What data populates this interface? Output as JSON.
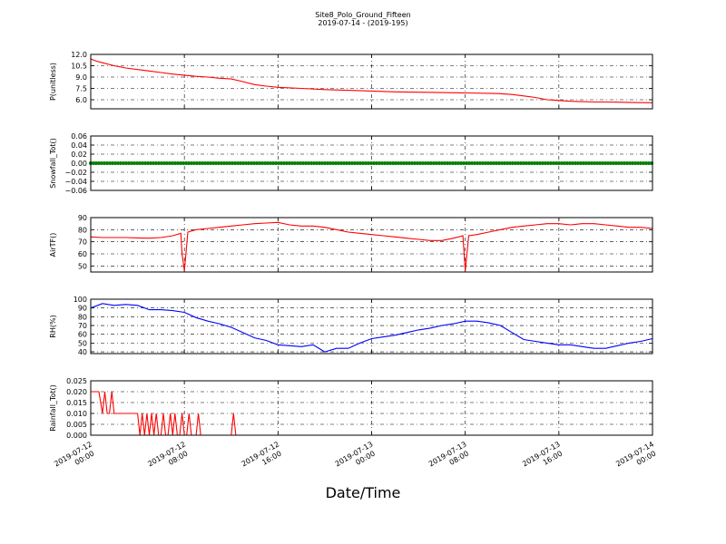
{
  "figure": {
    "title": "Site8_Polo_Ground_Fifteen",
    "subtitle": "2019-07-14 - (2019-195)",
    "xlabel": "Date/Time",
    "x_ticks": [
      [
        "2019-07-12",
        "00:00"
      ],
      [
        "2019-07-12",
        "08:00"
      ],
      [
        "2019-07-12",
        "16:00"
      ],
      [
        "2019-07-13",
        "00:00"
      ],
      [
        "2019-07-13",
        "08:00"
      ],
      [
        "2019-07-13",
        "16:00"
      ],
      [
        "2019-07-14",
        "00:00"
      ]
    ]
  },
  "chart_data": [
    {
      "type": "line",
      "ylabel": "P(unitless)",
      "ylim": [
        4.8,
        12.0
      ],
      "yticks": [
        "6.0",
        "7.5",
        "9.0",
        "10.5",
        "12.0"
      ],
      "yticks_values": [
        6.0,
        7.5,
        9.0,
        10.5,
        12.0
      ],
      "grid": true,
      "series": [
        {
          "color": "#ff0000",
          "marker": "none",
          "x_hours": [
            0,
            0.5,
            1,
            2,
            3,
            4,
            5,
            6,
            7,
            8,
            9,
            10,
            11,
            12,
            13,
            14,
            15,
            16,
            18,
            20,
            22,
            24,
            26,
            28,
            30,
            32,
            34,
            35,
            36,
            37,
            38,
            39,
            40,
            41,
            42,
            43,
            44,
            45,
            46,
            47,
            48
          ],
          "y": [
            11.4,
            11.1,
            10.9,
            10.5,
            10.2,
            10.0,
            9.8,
            9.6,
            9.4,
            9.25,
            9.1,
            9.0,
            8.85,
            8.75,
            8.4,
            8.0,
            7.8,
            7.65,
            7.5,
            7.35,
            7.25,
            7.15,
            7.05,
            7.0,
            6.95,
            6.9,
            6.85,
            6.8,
            6.7,
            6.5,
            6.3,
            6.0,
            5.9,
            5.8,
            5.75,
            5.7,
            5.7,
            5.68,
            5.65,
            5.62,
            5.6
          ]
        }
      ]
    },
    {
      "type": "line",
      "ylabel": "Snowfall_Tot()",
      "ylim": [
        -0.06,
        0.06
      ],
      "yticks": [
        "−0.06",
        "−0.04",
        "−0.02",
        "0.00",
        "0.02",
        "0.04",
        "0.06"
      ],
      "yticks_values": [
        -0.06,
        -0.04,
        -0.02,
        0.0,
        0.02,
        0.04,
        0.06
      ],
      "grid": true,
      "series": [
        {
          "color": "#008000",
          "marker": "dot",
          "x_hours": [
            0,
            48
          ],
          "y": [
            0.0,
            0.0
          ]
        }
      ]
    },
    {
      "type": "line",
      "ylabel": "AirTF()",
      "ylim": [
        45,
        90
      ],
      "yticks": [
        "50",
        "60",
        "70",
        "80",
        "90"
      ],
      "yticks_values": [
        50,
        60,
        70,
        80,
        90
      ],
      "grid": true,
      "series": [
        {
          "color": "#ff0000",
          "marker": "none",
          "x_hours": [
            0,
            1,
            2,
            3,
            4,
            5,
            6,
            7,
            7.7,
            7.8,
            8.0,
            8.3,
            9,
            10,
            11,
            12,
            13,
            14,
            15,
            16,
            17,
            18,
            19,
            20,
            21,
            22,
            23,
            24,
            25,
            26,
            27,
            28,
            29,
            30,
            31,
            31.8,
            32.0,
            32.3,
            33,
            34,
            35,
            36,
            37,
            38,
            39,
            40,
            41,
            42,
            43,
            44,
            45,
            46,
            47,
            48
          ],
          "y": [
            74,
            73.5,
            73.5,
            73.5,
            73.2,
            73,
            73.5,
            75,
            77,
            60,
            46,
            78,
            80,
            81,
            82,
            83,
            84,
            85,
            85.5,
            86,
            84,
            83,
            83,
            82,
            80,
            78,
            77,
            76,
            75,
            74,
            73,
            72,
            71,
            71,
            73,
            75,
            46,
            75,
            76,
            78,
            80,
            82,
            83,
            84,
            85,
            85,
            84,
            85,
            85,
            84,
            83,
            82,
            82,
            81
          ]
        }
      ]
    },
    {
      "type": "line",
      "ylabel": "RH(%)",
      "ylim": [
        38,
        100
      ],
      "yticks": [
        "40",
        "50",
        "60",
        "70",
        "80",
        "90",
        "100"
      ],
      "yticks_values": [
        40,
        50,
        60,
        70,
        80,
        90,
        100
      ],
      "grid": true,
      "series": [
        {
          "color": "#0000ff",
          "marker": "none",
          "x_hours": [
            0,
            1,
            2,
            3,
            4,
            5,
            6,
            7,
            8,
            9,
            10,
            11,
            12,
            13,
            14,
            15,
            16,
            17,
            18,
            19,
            20,
            21,
            22,
            23,
            24,
            25,
            26,
            27,
            28,
            29,
            30,
            31,
            32,
            33,
            34,
            35,
            36,
            37,
            38,
            39,
            40,
            41,
            42,
            43,
            44,
            45,
            46,
            47,
            48
          ],
          "y": [
            90,
            95,
            93,
            94,
            93,
            88,
            88,
            87,
            85,
            79,
            75,
            72,
            68,
            62,
            56,
            53,
            48,
            47,
            46,
            48,
            40,
            44,
            44,
            50,
            55,
            57,
            59,
            62,
            65,
            67,
            70,
            72,
            75,
            75,
            73,
            70,
            62,
            54,
            52,
            50,
            48,
            48,
            46,
            44,
            44,
            47,
            50,
            52,
            55
          ]
        }
      ]
    },
    {
      "type": "line",
      "ylabel": "Rainfall_Tot()",
      "ylim": [
        0.0,
        0.025
      ],
      "yticks": [
        "0.000",
        "0.005",
        "0.010",
        "0.015",
        "0.020",
        "0.025"
      ],
      "yticks_values": [
        0.0,
        0.005,
        0.01,
        0.015,
        0.02,
        0.025
      ],
      "grid": true,
      "series": [
        {
          "color": "#ff0000",
          "marker": "none",
          "x_hours": [
            0,
            0.7,
            1.0,
            1.2,
            1.4,
            1.6,
            1.8,
            2.0,
            2.2,
            4.0,
            4.2,
            4.4,
            4.6,
            4.8,
            5.0,
            5.2,
            5.4,
            5.6,
            5.8,
            6.0,
            6.2,
            6.4,
            6.6,
            6.8,
            7.0,
            7.2,
            7.4,
            7.6,
            7.8,
            8.0,
            8.2,
            8.4,
            8.6,
            8.8,
            9.0,
            9.2,
            9.4,
            9.6,
            9.8,
            10.0,
            10.2,
            12.0,
            12.2,
            12.4,
            48
          ],
          "y": [
            0.02,
            0.02,
            0.01,
            0.02,
            0.01,
            0.01,
            0.02,
            0.01,
            0.01,
            0.01,
            0.0,
            0.01,
            0.0,
            0.01,
            0.0,
            0.01,
            0.0,
            0.01,
            0.0,
            0.0,
            0.01,
            0.0,
            0.0,
            0.01,
            0.0,
            0.01,
            0.0,
            0.0,
            0.01,
            0.0,
            0.0,
            0.01,
            0.0,
            0.0,
            0.0,
            0.01,
            0.0,
            0.0,
            0.0,
            0.0,
            0.0,
            0.0,
            0.01,
            0.0,
            0.0
          ]
        }
      ]
    }
  ]
}
